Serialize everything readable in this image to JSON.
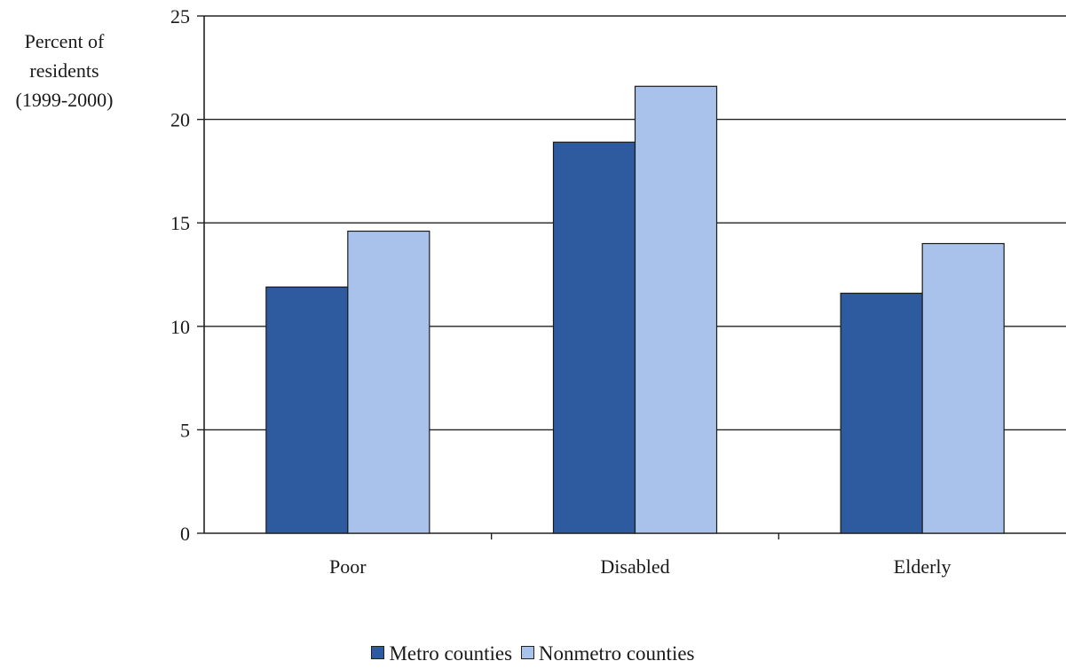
{
  "chart_data": {
    "type": "bar",
    "title": "",
    "ylabel_lines": [
      "Percent of",
      "residents",
      "(1999-2000)"
    ],
    "xlabel": "",
    "categories": [
      "Poor",
      "Disabled",
      "Elderly"
    ],
    "series": [
      {
        "name": "Metro counties",
        "values": [
          11.9,
          18.9,
          11.6
        ],
        "color": "#2e5a9f"
      },
      {
        "name": "Nonmetro counties",
        "values": [
          14.6,
          21.6,
          14.0
        ],
        "color": "#a9c2ec"
      }
    ],
    "ylim": [
      0,
      25
    ],
    "yticks": [
      0,
      5,
      10,
      15,
      20,
      25
    ],
    "grid": true,
    "legend_position": "bottom"
  }
}
